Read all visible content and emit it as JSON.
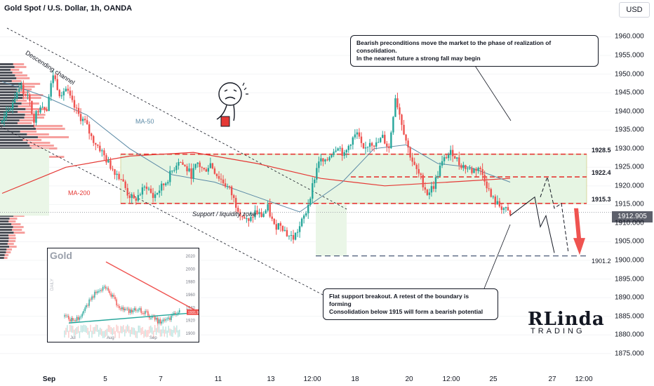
{
  "header": {
    "title": "Gold Spot / U.S. Dollar, 1h, OANDA",
    "currency": "USD"
  },
  "colors": {
    "bull": "#26a69a",
    "bear": "#ef5350",
    "zone": "#e6f5e3",
    "ma200": "#e53935",
    "ma50": "#5b8aa6",
    "level": "#e53935"
  },
  "annotations": {
    "top_note_line1": "Bearish preconditions move the market to the phase of realization of consolidation.",
    "top_note_line2": "In the nearest future a strong fall may begin",
    "bottom_note_line1": "Flat support breakout. A retest of the boundary is forming",
    "bottom_note_line2": "Consolidation below 1915 will form a bearish potential",
    "channel": "Descending channel",
    "zone": "Support / liquidity zone",
    "ma50": "MA-50",
    "ma200": "MA-200"
  },
  "inset": {
    "title": "Gold",
    "side": "DAILY",
    "y_ticks": [
      "2020",
      "2000",
      "1980",
      "1960",
      "1940",
      "1920",
      "1900"
    ],
    "x_ticks": [
      "Jul",
      "Aug",
      "Sep"
    ],
    "price_tag": "1931.9"
  },
  "brand": {
    "main": "RLinda",
    "sub": "TRADING"
  },
  "chart_data": {
    "type": "candlestick",
    "title": "Gold Spot / U.S. Dollar, 1h, OANDA",
    "ylim": [
      1871,
      1968
    ],
    "y_ticks": [
      1875.0,
      1880.0,
      1885.0,
      1890.0,
      1895.0,
      1900.0,
      1905.0,
      1910.0,
      1915.0,
      1920.0,
      1925.0,
      1930.0,
      1935.0,
      1940.0,
      1945.0,
      1950.0,
      1955.0,
      1960.0
    ],
    "x_ticks": [
      "Sep",
      "5",
      "7",
      "11",
      "13",
      "12:00",
      "18",
      "20",
      "12:00",
      "25",
      "27",
      "12:00"
    ],
    "last_price": "1912.905",
    "levels": [
      {
        "label": "1928.5",
        "value": 1928.5
      },
      {
        "label": "1922.4",
        "value": 1922.4
      },
      {
        "label": "1915.3",
        "value": 1915.3
      },
      {
        "label": "1901.2",
        "value": 1901.2
      }
    ],
    "path": [
      [
        0,
        1937
      ],
      [
        4,
        1941
      ],
      [
        8,
        1947
      ],
      [
        12,
        1944
      ],
      [
        15,
        1938
      ],
      [
        18,
        1942
      ],
      [
        21,
        1941
      ],
      [
        24,
        1950
      ],
      [
        27,
        1945
      ],
      [
        30,
        1946
      ],
      [
        33,
        1942
      ],
      [
        36,
        1939
      ],
      [
        39,
        1937
      ],
      [
        42,
        1933
      ],
      [
        46,
        1930
      ],
      [
        50,
        1926
      ],
      [
        53,
        1924
      ],
      [
        56,
        1922
      ],
      [
        59,
        1918
      ],
      [
        62,
        1916
      ],
      [
        65,
        1918
      ],
      [
        68,
        1920
      ],
      [
        71,
        1917
      ],
      [
        74,
        1919
      ],
      [
        77,
        1921
      ],
      [
        80,
        1924
      ],
      [
        83,
        1927
      ],
      [
        86,
        1925
      ],
      [
        89,
        1923
      ],
      [
        92,
        1926
      ],
      [
        95,
        1924
      ],
      [
        98,
        1926
      ],
      [
        101,
        1923
      ],
      [
        104,
        1921
      ],
      [
        107,
        1919
      ],
      [
        110,
        1915
      ],
      [
        113,
        1912
      ],
      [
        116,
        1910
      ],
      [
        119,
        1913
      ],
      [
        122,
        1912
      ],
      [
        125,
        1914
      ],
      [
        128,
        1909
      ],
      [
        131,
        1910
      ],
      [
        134,
        1907
      ],
      [
        137,
        1906
      ],
      [
        140,
        1909
      ],
      [
        143,
        1913
      ],
      [
        146,
        1920
      ],
      [
        149,
        1927
      ],
      [
        152,
        1926
      ],
      [
        155,
        1929
      ],
      [
        158,
        1931
      ],
      [
        161,
        1928
      ],
      [
        164,
        1932
      ],
      [
        167,
        1934
      ],
      [
        170,
        1929
      ],
      [
        173,
        1932
      ],
      [
        176,
        1931
      ],
      [
        179,
        1933
      ],
      [
        182,
        1930
      ],
      [
        185,
        1944
      ],
      [
        188,
        1937
      ],
      [
        191,
        1930
      ],
      [
        194,
        1925
      ],
      [
        197,
        1922
      ],
      [
        200,
        1918
      ],
      [
        203,
        1920
      ],
      [
        206,
        1925
      ],
      [
        209,
        1928
      ],
      [
        212,
        1929
      ],
      [
        215,
        1926
      ],
      [
        218,
        1925
      ],
      [
        221,
        1924
      ],
      [
        224,
        1925
      ],
      [
        227,
        1922
      ],
      [
        230,
        1917
      ],
      [
        233,
        1915
      ],
      [
        236,
        1914
      ],
      [
        239,
        1912
      ]
    ],
    "ma50": [
      [
        0,
        1948
      ],
      [
        20,
        1944
      ],
      [
        40,
        1939
      ],
      [
        60,
        1930
      ],
      [
        80,
        1923
      ],
      [
        100,
        1921
      ],
      [
        120,
        1917
      ],
      [
        140,
        1913
      ],
      [
        160,
        1921
      ],
      [
        175,
        1930
      ],
      [
        190,
        1931
      ],
      [
        205,
        1926
      ],
      [
        220,
        1925
      ],
      [
        239,
        1921
      ]
    ],
    "ma200": [
      [
        0,
        1918
      ],
      [
        30,
        1925
      ],
      [
        60,
        1928
      ],
      [
        90,
        1929
      ],
      [
        120,
        1926
      ],
      [
        150,
        1922
      ],
      [
        180,
        1920
      ],
      [
        210,
        1921
      ],
      [
        239,
        1922
      ]
    ],
    "volume_profile": true
  }
}
